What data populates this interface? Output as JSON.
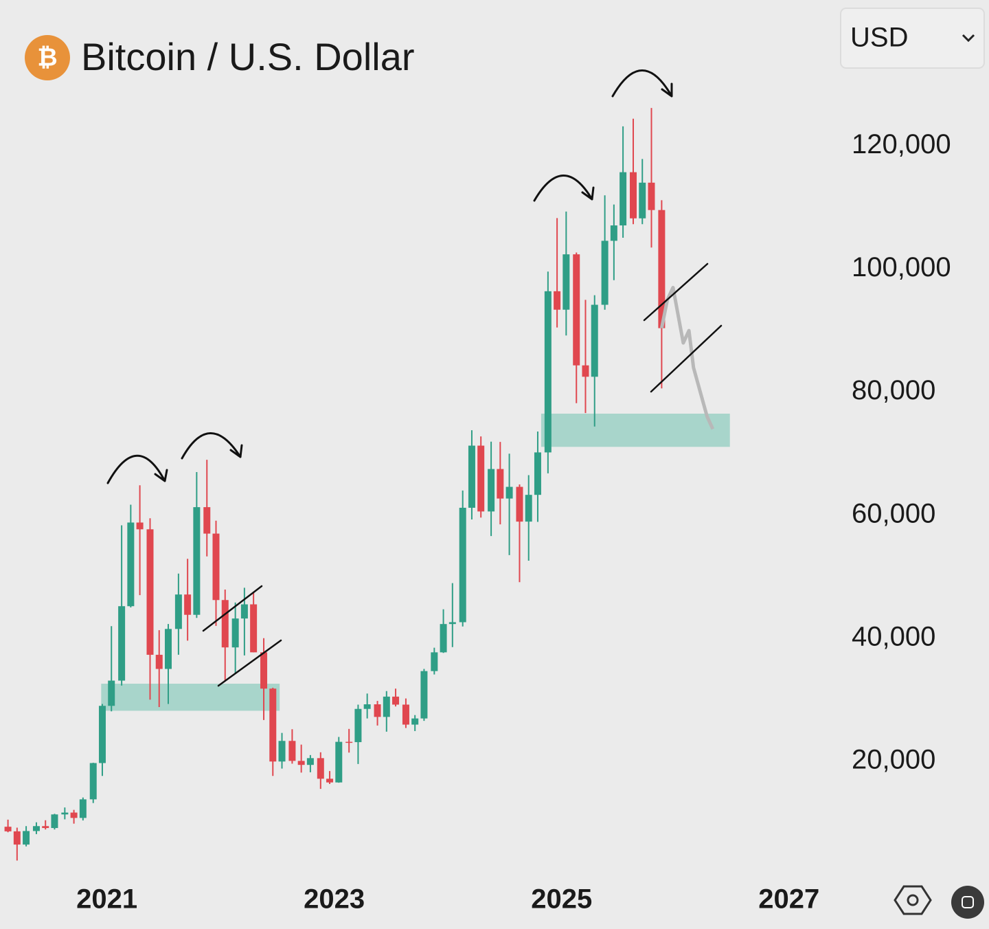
{
  "chart_data": {
    "type": "candlestick",
    "title": "Bitcoin / U.S. Dollar",
    "currency_symbol": "₿",
    "currency_selector": "USD",
    "xlim": [
      2020.06,
      2027.4
    ],
    "xticks": [
      2021,
      2023,
      2025,
      2027
    ],
    "ylim": [
      3000,
      129000
    ],
    "yticks": [
      {
        "value": 20000,
        "label": "20,000"
      },
      {
        "value": 40000,
        "label": "40,000"
      },
      {
        "value": 60000,
        "label": "60,000"
      },
      {
        "value": 80000,
        "label": "80,000"
      },
      {
        "value": 100000,
        "label": "100,000"
      },
      {
        "value": 120000,
        "label": "120,000"
      }
    ],
    "up_color": "#2f9e86",
    "down_color": "#e0474f",
    "x": [
      2020.13,
      2020.21,
      2020.29,
      2020.38,
      2020.46,
      2020.54,
      2020.63,
      2020.71,
      2020.79,
      2020.88,
      2020.96,
      2021.04,
      2021.13,
      2021.21,
      2021.29,
      2021.38,
      2021.46,
      2021.54,
      2021.63,
      2021.71,
      2021.79,
      2021.88,
      2021.96,
      2022.04,
      2022.13,
      2022.21,
      2022.29,
      2022.38,
      2022.46,
      2022.54,
      2022.63,
      2022.71,
      2022.79,
      2022.88,
      2022.96,
      2023.04,
      2023.13,
      2023.21,
      2023.29,
      2023.38,
      2023.46,
      2023.54,
      2023.63,
      2023.71,
      2023.79,
      2023.88,
      2023.96,
      2024.04,
      2024.13,
      2024.21,
      2024.29,
      2024.38,
      2024.46,
      2024.54,
      2024.63,
      2024.71,
      2024.79,
      2024.88,
      2024.96,
      2025.04,
      2025.13,
      2025.21,
      2025.29,
      2025.38,
      2025.46,
      2025.54,
      2025.63,
      2025.71,
      2025.79,
      2025.88
    ],
    "ohlc": [
      [
        9350,
        10500,
        8450,
        8600
      ],
      [
        8600,
        9200,
        3850,
        6450
      ],
      [
        6450,
        9450,
        6150,
        8650
      ],
      [
        8650,
        10070,
        8150,
        9450
      ],
      [
        9450,
        10400,
        8900,
        9140
      ],
      [
        9140,
        11450,
        8900,
        11350
      ],
      [
        11350,
        12480,
        10550,
        11650
      ],
      [
        11650,
        12090,
        9850,
        10780
      ],
      [
        10780,
        14100,
        10370,
        13800
      ],
      [
        13800,
        19750,
        13200,
        19700
      ],
      [
        19700,
        29300,
        17600,
        29000
      ],
      [
        29000,
        41950,
        28100,
        33100
      ],
      [
        33100,
        58350,
        32300,
        45200
      ],
      [
        45200,
        61700,
        45000,
        58800
      ],
      [
        58800,
        64850,
        47000,
        57700
      ],
      [
        57700,
        59500,
        30000,
        37300
      ],
      [
        37300,
        41300,
        28800,
        35000
      ],
      [
        35000,
        42300,
        29300,
        41500
      ],
      [
        41500,
        50500,
        37300,
        47100
      ],
      [
        47100,
        52900,
        39600,
        43800
      ],
      [
        43800,
        67000,
        43300,
        61300
      ],
      [
        61300,
        69000,
        53300,
        57000
      ],
      [
        57000,
        59100,
        42000,
        46200
      ],
      [
        46200,
        47900,
        33000,
        38500
      ],
      [
        38500,
        45800,
        34300,
        43200
      ],
      [
        43200,
        48200,
        37200,
        45500
      ],
      [
        45500,
        47400,
        37700,
        37700
      ],
      [
        37700,
        40000,
        26700,
        31800
      ],
      [
        31800,
        31950,
        17600,
        19950
      ],
      [
        19950,
        24600,
        18800,
        23300
      ],
      [
        23300,
        25200,
        19600,
        20050
      ],
      [
        20050,
        22700,
        18150,
        19400
      ],
      [
        19400,
        21000,
        18200,
        20500
      ],
      [
        20500,
        21450,
        15500,
        17150
      ],
      [
        17150,
        18400,
        16300,
        16550
      ],
      [
        16550,
        23950,
        16500,
        23150
      ],
      [
        23150,
        25250,
        21400,
        23100
      ],
      [
        23100,
        29200,
        19550,
        28500
      ],
      [
        28500,
        31000,
        26950,
        29250
      ],
      [
        29250,
        29800,
        25800,
        27200
      ],
      [
        27200,
        31400,
        24800,
        30500
      ],
      [
        30500,
        31800,
        28900,
        29200
      ],
      [
        29200,
        30200,
        25400,
        25950
      ],
      [
        25950,
        27500,
        24900,
        26950
      ],
      [
        26950,
        35000,
        26550,
        34650
      ],
      [
        34650,
        38450,
        34100,
        37700
      ],
      [
        37700,
        44700,
        37600,
        42300
      ],
      [
        42300,
        48950,
        38550,
        42600
      ],
      [
        42600,
        64000,
        41900,
        61200
      ],
      [
        61200,
        73800,
        59300,
        71300
      ],
      [
        71300,
        72800,
        59600,
        60600
      ],
      [
        60600,
        71950,
        56600,
        67500
      ],
      [
        67500,
        71900,
        58500,
        62700
      ],
      [
        62700,
        70000,
        53500,
        64600
      ],
      [
        64600,
        65000,
        49100,
        58950
      ],
      [
        58950,
        66500,
        52600,
        63300
      ],
      [
        63300,
        73600,
        58900,
        70200
      ],
      [
        70200,
        99600,
        66800,
        96400
      ],
      [
        96400,
        108300,
        90500,
        93400
      ],
      [
        93400,
        109350,
        89200,
        102400
      ],
      [
        102400,
        102700,
        78200,
        84350
      ],
      [
        84350,
        95000,
        76600,
        82500
      ],
      [
        82500,
        95750,
        74400,
        94200
      ],
      [
        94200,
        112000,
        93400,
        104600
      ],
      [
        104600,
        110500,
        98200,
        107100
      ],
      [
        107100,
        123200,
        105100,
        115750
      ],
      [
        115750,
        124450,
        107300,
        108250
      ],
      [
        108250,
        117900,
        107300,
        114050
      ],
      [
        114050,
        126200,
        103500,
        109600
      ],
      [
        109600,
        111200,
        80600,
        90400
      ]
    ],
    "projection": {
      "color": "#b8b8b8",
      "x": [
        2025.88,
        2025.93,
        2025.98,
        2026.02,
        2026.07,
        2026.12,
        2026.16,
        2026.22,
        2026.28,
        2026.33
      ],
      "values": [
        90400,
        95000,
        97000,
        93000,
        88000,
        90000,
        84000,
        80000,
        76000,
        74000
      ]
    },
    "zones": [
      {
        "x": [
          2020.95,
          2022.52
        ],
        "y": [
          28200,
          32600
        ]
      },
      {
        "x": [
          2024.82,
          2026.48
        ],
        "y": [
          71100,
          76500
        ]
      }
    ],
    "zone_color": "#a8d5cb"
  }
}
